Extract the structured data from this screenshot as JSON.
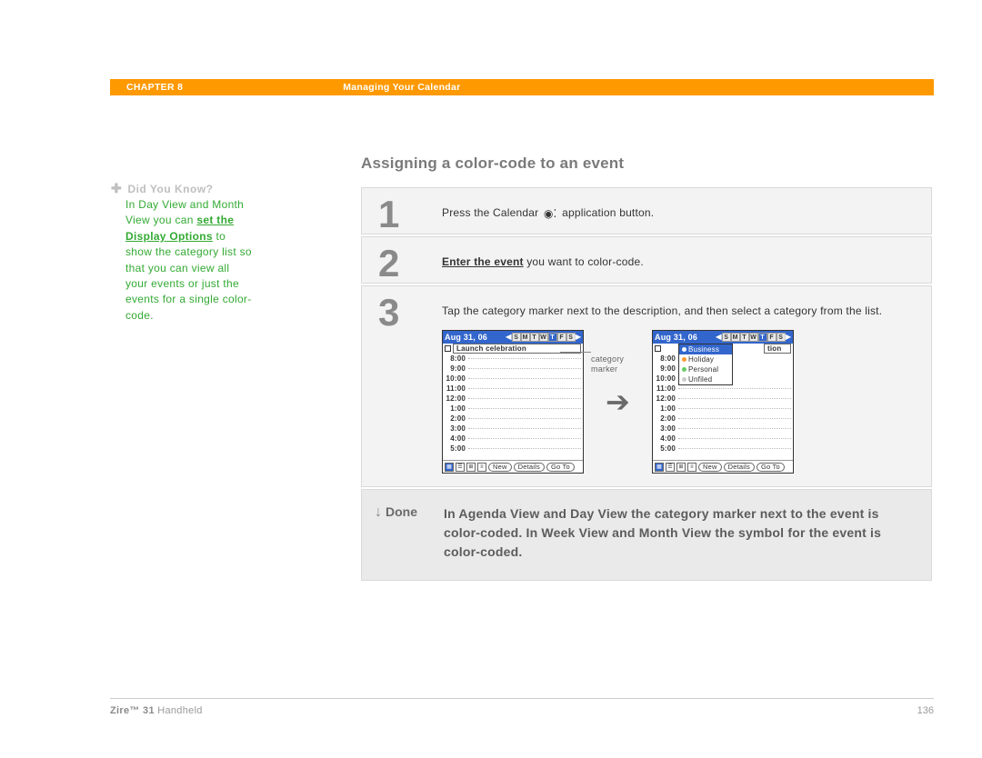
{
  "header": {
    "chapter": "CHAPTER 8",
    "section": "Managing Your Calendar"
  },
  "sidebar": {
    "did_you_know": "Did You Know?",
    "tip_before": "In Day View and Month View you can ",
    "tip_link": "set the Display Options",
    "tip_after": " to show the category list so that you can view all your events or just the events for a single color-code."
  },
  "main": {
    "title": "Assigning a color-code to an event",
    "steps": [
      {
        "num": "1",
        "text_before": "Press the Calendar ",
        "text_after": " application button."
      },
      {
        "num": "2",
        "link": "Enter the event",
        "text_after": " you want to color-code."
      },
      {
        "num": "3",
        "text": "Tap the category marker next to the description, and then select a category from the list."
      }
    ],
    "callout": "category marker",
    "screenshot": {
      "date": "Aug 31, 06",
      "days": [
        "S",
        "M",
        "T",
        "W",
        "T",
        "F",
        "S"
      ],
      "active_day_index": 4,
      "event": "Launch celebration",
      "times": [
        "8:00",
        "9:00",
        "10:00",
        "11:00",
        "12:00",
        "1:00",
        "2:00",
        "3:00",
        "4:00",
        "5:00"
      ],
      "footer_buttons": [
        "New",
        "Details",
        "Go To"
      ],
      "dropdown": {
        "items": [
          "Business",
          "Holiday",
          "Personal",
          "Unfiled"
        ],
        "selected": 0,
        "colors": [
          "#3399ff",
          "#ff9933",
          "#66cc66",
          "#cccccc"
        ]
      },
      "event_suffix": "tion"
    },
    "done": {
      "label": "Done",
      "text": "In Agenda View and Day View the category marker next to the event is color-coded. In Week View and Month View the symbol for the event is color-coded."
    }
  },
  "footer": {
    "product_bold": "Zire™ 31",
    "product_rest": " Handheld",
    "page": "136"
  },
  "colors": {
    "header_bg": "#ff9900",
    "tip_green": "#33aa33",
    "step_bg": "#f3f3f3",
    "done_bg": "#eaeaea",
    "palm_blue": "#3366cc"
  }
}
